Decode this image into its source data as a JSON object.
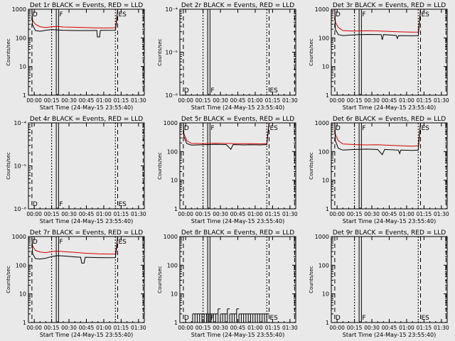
{
  "chart_data": {
    "type": "line",
    "x_ticks": [
      "00:00",
      "00:15",
      "00:30",
      "00:45",
      "01:00",
      "01:15",
      "01:30"
    ],
    "xlabel": "Start Time (24-May-15 23:55:40)",
    "legend": {
      "events_color": "#000000",
      "lld_color": "#d40000"
    },
    "panels": [
      {
        "title": "Det 1r BLACK = Events, RED = LLD",
        "ylabel": "Counts/sec",
        "yscale": "log",
        "ylim": [
          1,
          1000
        ],
        "y_ticks": [
          "1",
          "10",
          "100",
          "1000"
        ],
        "labels": [
          "D",
          "F",
          "ES"
        ],
        "events": [
          [
            3,
            1000
          ],
          [
            3.5,
            290
          ],
          [
            6,
            180
          ],
          [
            10,
            170
          ],
          [
            15,
            185
          ],
          [
            20,
            195
          ],
          [
            25,
            190
          ],
          [
            30,
            185
          ],
          [
            40,
            180
          ],
          [
            55,
            180
          ],
          [
            59,
            182
          ],
          [
            59.5,
            108
          ],
          [
            61.5,
            108
          ],
          [
            62,
            182
          ],
          [
            75,
            185
          ],
          [
            76,
            340
          ],
          [
            77,
            1000
          ]
        ],
        "lld": [
          [
            3,
            1000
          ],
          [
            3.5,
            420
          ],
          [
            6,
            300
          ],
          [
            10,
            245
          ],
          [
            15,
            230
          ],
          [
            20,
            245
          ],
          [
            25,
            250
          ],
          [
            30,
            240
          ],
          [
            40,
            235
          ],
          [
            55,
            225
          ],
          [
            65,
            222
          ],
          [
            75,
            225
          ],
          [
            76,
            420
          ],
          [
            77,
            1000
          ]
        ]
      },
      {
        "title": "Det 2r BLACK = Events, RED = LLD",
        "ylabel": "Counts/sec",
        "yscale": "log",
        "ylim": [
          1e-06,
          0.0001
        ],
        "y_ticks": [
          "10⁻⁶",
          "10⁻⁵",
          "10⁻⁴"
        ],
        "labels": [
          "D",
          "F",
          "ES"
        ],
        "events": [],
        "lld": []
      },
      {
        "title": "Det 3r BLACK = Events, RED = LLD",
        "ylabel": "Counts/sec",
        "yscale": "log",
        "ylim": [
          1,
          1000
        ],
        "y_ticks": [
          "1",
          "10",
          "100",
          "1000"
        ],
        "labels": [
          "D",
          "F",
          "ES"
        ],
        "events": [
          [
            3,
            1000
          ],
          [
            3.5,
            200
          ],
          [
            6,
            130
          ],
          [
            10,
            120
          ],
          [
            20,
            128
          ],
          [
            30,
            132
          ],
          [
            43,
            130
          ],
          [
            44,
            85
          ],
          [
            45,
            130
          ],
          [
            56,
            122
          ],
          [
            57,
            95
          ],
          [
            58,
            120
          ],
          [
            70,
            118
          ],
          [
            75,
            120
          ],
          [
            76,
            320
          ],
          [
            77,
            1000
          ]
        ],
        "lld": [
          [
            3,
            1000
          ],
          [
            3.5,
            360
          ],
          [
            6,
            230
          ],
          [
            10,
            180
          ],
          [
            20,
            172
          ],
          [
            30,
            178
          ],
          [
            40,
            175
          ],
          [
            50,
            168
          ],
          [
            60,
            162
          ],
          [
            70,
            158
          ],
          [
            75,
            160
          ],
          [
            76,
            380
          ],
          [
            77,
            1000
          ]
        ]
      },
      {
        "title": "Det 4r BLACK = Events, RED = LLD",
        "ylabel": "Counts/sec",
        "yscale": "log",
        "ylim": [
          1e-06,
          0.0001
        ],
        "y_ticks": [
          "10⁻⁶",
          "10⁻⁵",
          "10⁻⁴"
        ],
        "labels": [
          "D",
          "F",
          "ES"
        ],
        "events": [],
        "lld": []
      },
      {
        "title": "Det 5r BLACK = Events, RED = LLD",
        "ylabel": "Counts/sec",
        "yscale": "log",
        "ylim": [
          1,
          1000
        ],
        "y_ticks": [
          "1",
          "10",
          "100",
          "1000"
        ],
        "labels": [
          "D",
          "F",
          "ES"
        ],
        "events": [
          [
            3,
            1000
          ],
          [
            3.5,
            330
          ],
          [
            6,
            190
          ],
          [
            10,
            168
          ],
          [
            20,
            172
          ],
          [
            30,
            178
          ],
          [
            40,
            175
          ],
          [
            44,
            120
          ],
          [
            46,
            175
          ],
          [
            55,
            170
          ],
          [
            60,
            172
          ],
          [
            70,
            170
          ],
          [
            75,
            175
          ],
          [
            76,
            420
          ],
          [
            77,
            1000
          ]
        ],
        "lld": [
          [
            3,
            1000
          ],
          [
            3.5,
            420
          ],
          [
            6,
            240
          ],
          [
            10,
            192
          ],
          [
            20,
            188
          ],
          [
            30,
            195
          ],
          [
            40,
            192
          ],
          [
            50,
            188
          ],
          [
            60,
            188
          ],
          [
            70,
            185
          ],
          [
            75,
            190
          ],
          [
            76,
            450
          ],
          [
            77,
            1000
          ]
        ]
      },
      {
        "title": "Det 6r BLACK = Events, RED = LLD",
        "ylabel": "Counts/sec",
        "yscale": "log",
        "ylim": [
          1,
          1000
        ],
        "y_ticks": [
          "1",
          "10",
          "100",
          "1000"
        ],
        "labels": [
          "D",
          "F",
          "ES"
        ],
        "events": [
          [
            3,
            1000
          ],
          [
            3.5,
            240
          ],
          [
            6,
            130
          ],
          [
            10,
            112
          ],
          [
            20,
            118
          ],
          [
            30,
            122
          ],
          [
            40,
            118
          ],
          [
            44,
            78
          ],
          [
            46,
            118
          ],
          [
            58,
            112
          ],
          [
            59,
            85
          ],
          [
            60,
            112
          ],
          [
            70,
            110
          ],
          [
            75,
            112
          ],
          [
            76,
            330
          ],
          [
            77,
            1000
          ]
        ],
        "lld": [
          [
            3,
            1000
          ],
          [
            3.5,
            400
          ],
          [
            6,
            240
          ],
          [
            10,
            185
          ],
          [
            20,
            175
          ],
          [
            30,
            170
          ],
          [
            40,
            172
          ],
          [
            50,
            166
          ],
          [
            60,
            160
          ],
          [
            70,
            155
          ],
          [
            75,
            158
          ],
          [
            76,
            400
          ],
          [
            77,
            1000
          ]
        ]
      },
      {
        "title": "Det 7r BLACK = Events, RED = LLD",
        "ylabel": "Counts/sec",
        "yscale": "log",
        "ylim": [
          1,
          1000
        ],
        "y_ticks": [
          "1",
          "10",
          "100",
          "1000"
        ],
        "labels": [
          "D",
          "F",
          "ES"
        ],
        "events": [
          [
            3,
            1000
          ],
          [
            3.5,
            260
          ],
          [
            6,
            170
          ],
          [
            10,
            165
          ],
          [
            15,
            175
          ],
          [
            20,
            200
          ],
          [
            25,
            215
          ],
          [
            30,
            210
          ],
          [
            40,
            195
          ],
          [
            45,
            190
          ],
          [
            46,
            118
          ],
          [
            48,
            118
          ],
          [
            49,
            190
          ],
          [
            60,
            185
          ],
          [
            70,
            182
          ],
          [
            75,
            185
          ],
          [
            76,
            360
          ],
          [
            77,
            1000
          ]
        ],
        "lld": [
          [
            3,
            1000
          ],
          [
            3.5,
            480
          ],
          [
            6,
            330
          ],
          [
            10,
            290
          ],
          [
            15,
            275
          ],
          [
            20,
            300
          ],
          [
            25,
            310
          ],
          [
            30,
            300
          ],
          [
            40,
            280
          ],
          [
            50,
            262
          ],
          [
            60,
            250
          ],
          [
            70,
            245
          ],
          [
            75,
            248
          ],
          [
            76,
            480
          ],
          [
            77,
            1000
          ]
        ]
      },
      {
        "title": "Det 8r BLACK = Events, RED = LLD",
        "ylabel": "Counts/sec",
        "yscale": "log",
        "ylim": [
          1,
          1000
        ],
        "y_ticks": [
          "1",
          "10",
          "100",
          "1000"
        ],
        "labels": [
          "D",
          "F",
          "ES"
        ],
        "spikes": [
          [
            11,
            2
          ],
          [
            13,
            2
          ],
          [
            15,
            2
          ],
          [
            17,
            2
          ],
          [
            19,
            2
          ],
          [
            21,
            2
          ],
          [
            23,
            2
          ],
          [
            25,
            2
          ],
          [
            27,
            2
          ],
          [
            29,
            2
          ],
          [
            31,
            2
          ],
          [
            33,
            3
          ],
          [
            35,
            2
          ],
          [
            37,
            2
          ],
          [
            39,
            2
          ],
          [
            41,
            3
          ],
          [
            43,
            2
          ],
          [
            45,
            2
          ],
          [
            47,
            2
          ],
          [
            49,
            3
          ],
          [
            51,
            2
          ],
          [
            53,
            2
          ],
          [
            55,
            2
          ],
          [
            57,
            2
          ],
          [
            59,
            2
          ],
          [
            61,
            2
          ],
          [
            63,
            2
          ],
          [
            65,
            2
          ],
          [
            67,
            2
          ],
          [
            69,
            2
          ],
          [
            71,
            2
          ],
          [
            73,
            2
          ],
          [
            75,
            2
          ]
        ],
        "events": [],
        "lld": []
      },
      {
        "title": "Det 9r BLACK = Events, RED = LLD",
        "ylabel": "Counts/sec",
        "yscale": "log",
        "ylim": [
          1,
          1000
        ],
        "y_ticks": [
          "1",
          "10",
          "100",
          "1000"
        ],
        "labels": [
          "D",
          "F",
          "ES"
        ],
        "events": [],
        "lld": []
      }
    ]
  }
}
